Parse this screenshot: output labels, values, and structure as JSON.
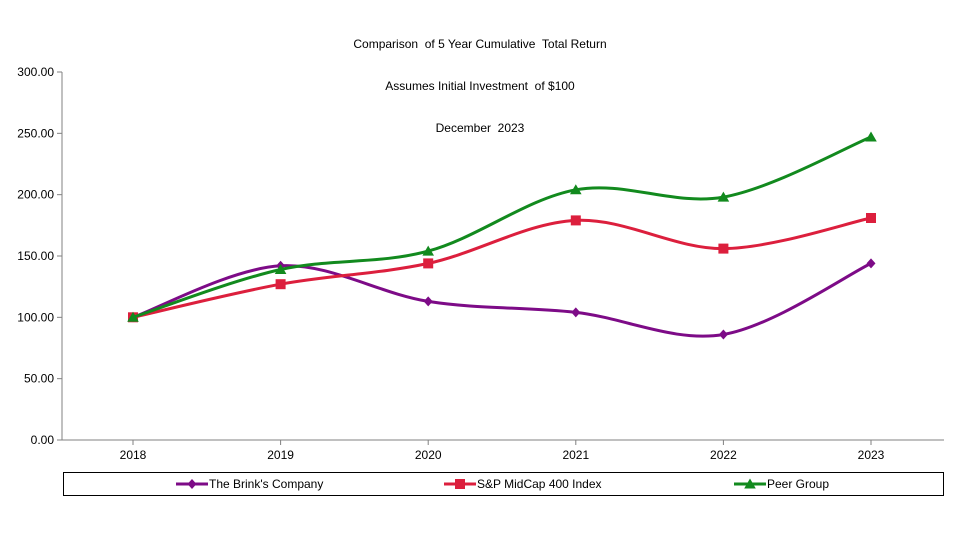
{
  "title": {
    "line1": "Comparison  of 5 Year Cumulative  Total Return",
    "line2": "Assumes Initial Investment  of $100",
    "line3": "December  2023"
  },
  "chart_data": {
    "type": "line",
    "title": "Comparison of 5 Year Cumulative Total Return",
    "subtitle": "Assumes Initial Investment of $100",
    "date_label": "December 2023",
    "categories": [
      "2018",
      "2019",
      "2020",
      "2021",
      "2022",
      "2023"
    ],
    "series": [
      {
        "name": "The Brink's Company",
        "marker": "diamond",
        "color": "#7d0b87",
        "values": [
          100.0,
          142.0,
          113.0,
          104.0,
          86.0,
          144.0
        ]
      },
      {
        "name": "S&P MidCap 400 Index",
        "marker": "square",
        "color": "#dc1f3d",
        "values": [
          100.0,
          127.0,
          144.0,
          179.0,
          156.0,
          181.0
        ]
      },
      {
        "name": "Peer Group",
        "marker": "triangle",
        "color": "#128a1e",
        "values": [
          100.0,
          139.0,
          154.0,
          204.0,
          198.0,
          247.0
        ]
      }
    ],
    "xlabel": "",
    "ylabel": "",
    "ylim": [
      0,
      300
    ],
    "ytick_step": 50,
    "ytick_labels": [
      "0.00",
      "50.00",
      "100.00",
      "150.00",
      "200.00",
      "250.00",
      "300.00"
    ],
    "grid": false,
    "line_style": "smooth",
    "legend_position": "bottom",
    "axis_color": "#808080",
    "text_color": "#000000"
  }
}
